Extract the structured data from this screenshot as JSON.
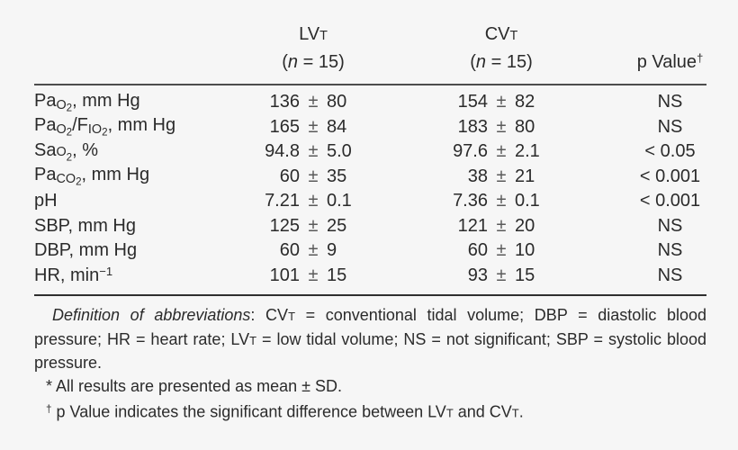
{
  "page": {
    "background": "#f6f6f6",
    "text_color": "#2b2b2b",
    "rule_color": "#4d4d4d"
  },
  "table": {
    "pm": "±",
    "header": {
      "lvt_title": [
        [
          "t",
          "LV"
        ],
        [
          "sc",
          "T"
        ]
      ],
      "lvt_n": [
        [
          "t",
          "("
        ],
        [
          "i",
          "n"
        ],
        [
          "t",
          " = 15)"
        ]
      ],
      "cvt_title": [
        [
          "t",
          "CV"
        ],
        [
          "sc",
          "T"
        ]
      ],
      "cvt_n": [
        [
          "t",
          "("
        ],
        [
          "i",
          "n"
        ],
        [
          "t",
          " = 15)"
        ]
      ],
      "p_title": [
        [
          "t",
          "p Value"
        ],
        [
          "sup",
          "†"
        ]
      ]
    },
    "rows": [
      {
        "label": [
          [
            "t",
            "Pa"
          ],
          [
            "sub",
            "O"
          ],
          [
            "sub2",
            "2"
          ],
          [
            "t",
            ", mm Hg"
          ]
        ],
        "lvt_mean": "136",
        "lvt_sd": "80",
        "cvt_mean": "154",
        "cvt_sd": "82",
        "p": "NS"
      },
      {
        "label": [
          [
            "t",
            "Pa"
          ],
          [
            "sub",
            "O"
          ],
          [
            "sub2",
            "2"
          ],
          [
            "t",
            "/F"
          ],
          [
            "sub",
            "I"
          ],
          [
            "sub",
            "O"
          ],
          [
            "sub2",
            "2"
          ],
          [
            "t",
            ", mm Hg"
          ]
        ],
        "lvt_mean": "165",
        "lvt_sd": "84",
        "cvt_mean": "183",
        "cvt_sd": "80",
        "p": "NS"
      },
      {
        "label": [
          [
            "t",
            "Sa"
          ],
          [
            "sc",
            "O"
          ],
          [
            "sub2",
            "2"
          ],
          [
            "t",
            ", %"
          ]
        ],
        "lvt_mean": "94.8",
        "lvt_sd": "5.0",
        "cvt_mean": "97.6",
        "cvt_sd": "2.1",
        "p": "< 0.05"
      },
      {
        "label": [
          [
            "t",
            "Pa"
          ],
          [
            "sub",
            "CO"
          ],
          [
            "sub2",
            "2"
          ],
          [
            "t",
            ", mm Hg"
          ]
        ],
        "lvt_mean": "60",
        "lvt_sd": "35",
        "cvt_mean": "38",
        "cvt_sd": "21",
        "p": "< 0.001"
      },
      {
        "label": [
          [
            "t",
            "pH"
          ]
        ],
        "lvt_mean": "7.21",
        "lvt_sd": "0.1",
        "cvt_mean": "7.36",
        "cvt_sd": "0.1",
        "p": "< 0.001"
      },
      {
        "label": [
          [
            "t",
            "SBP, mm Hg"
          ]
        ],
        "lvt_mean": "125",
        "lvt_sd": "25",
        "cvt_mean": "121",
        "cvt_sd": "20",
        "p": "NS"
      },
      {
        "label": [
          [
            "t",
            "DBP, mm Hg"
          ]
        ],
        "lvt_mean": "60",
        "lvt_sd": "9",
        "cvt_mean": "60",
        "cvt_sd": "10",
        "p": "NS"
      },
      {
        "label": [
          [
            "t",
            "HR, min"
          ],
          [
            "sup",
            "−1"
          ]
        ],
        "lvt_mean": "101",
        "lvt_sd": "15",
        "cvt_mean": "93",
        "cvt_sd": "15",
        "p": "NS"
      }
    ]
  },
  "footnotes": {
    "definition": [
      [
        "i",
        "Definition of abbreviations"
      ],
      [
        "t",
        ": CV"
      ],
      [
        "sc",
        "T"
      ],
      [
        "t",
        " = conventional tidal volume; DBP = diastolic blood pressure; HR = heart rate; LV"
      ],
      [
        "sc",
        "T"
      ],
      [
        "t",
        " = low tidal volume; NS = not significant; SBP = systolic blood pressure."
      ]
    ],
    "star": [
      [
        "t",
        "* All results are presented as mean ± SD."
      ]
    ],
    "dagger": [
      [
        "sup",
        "†"
      ],
      [
        "t",
        " p Value indicates the significant difference between LV"
      ],
      [
        "sc",
        "T"
      ],
      [
        "t",
        " and CV"
      ],
      [
        "sc",
        "T"
      ],
      [
        "t",
        "."
      ]
    ]
  }
}
